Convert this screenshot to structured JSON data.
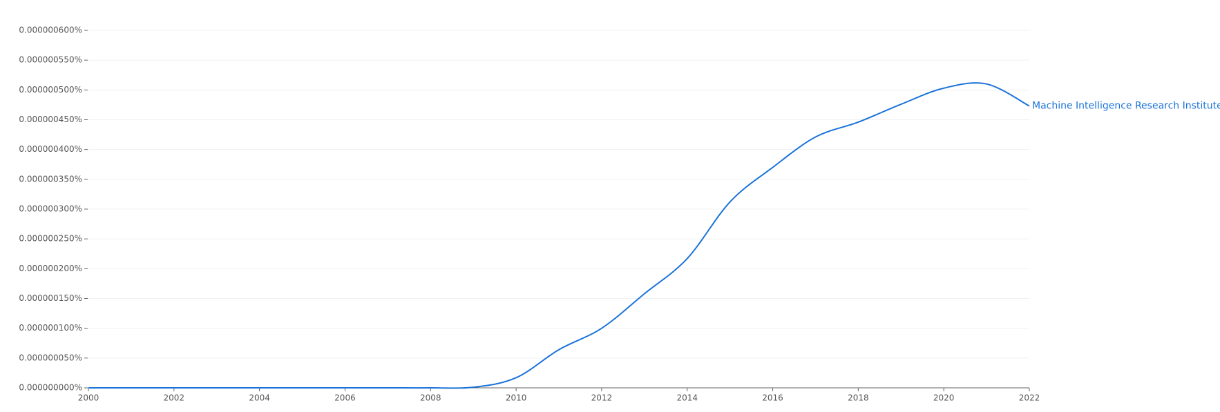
{
  "chart_data": {
    "type": "line",
    "x": [
      2000,
      2001,
      2002,
      2003,
      2004,
      2005,
      2006,
      2007,
      2008,
      2009,
      2010,
      2011,
      2012,
      2013,
      2014,
      2015,
      2016,
      2017,
      2018,
      2019,
      2020,
      2021,
      2022
    ],
    "series": [
      {
        "name": "Machine Intelligence Research Institute",
        "color": "#1a73d9",
        "values": [
          0,
          0,
          0,
          0,
          0,
          0,
          0,
          0,
          0,
          1e-09,
          1.7e-08,
          6.4e-08,
          1e-07,
          1.58e-07,
          2.17e-07,
          3.12e-07,
          3.7e-07,
          4.21e-07,
          4.46e-07,
          4.76e-07,
          5.03e-07,
          5.1e-07,
          4.73e-07
        ]
      }
    ],
    "xlim": [
      2000,
      2022
    ],
    "xticks": [
      2000,
      2002,
      2004,
      2006,
      2008,
      2010,
      2012,
      2014,
      2016,
      2018,
      2020,
      2022
    ],
    "ylim": [
      0,
      6e-07
    ],
    "yticks": [
      {
        "value": 0,
        "label": "0.000000000%"
      },
      {
        "value": 5e-08,
        "label": "0.000000050%"
      },
      {
        "value": 1e-07,
        "label": "0.000000100%"
      },
      {
        "value": 1.5e-07,
        "label": "0.000000150%"
      },
      {
        "value": 2e-07,
        "label": "0.000000200%"
      },
      {
        "value": 2.5e-07,
        "label": "0.000000250%"
      },
      {
        "value": 3e-07,
        "label": "0.000000300%"
      },
      {
        "value": 3.5e-07,
        "label": "0.000000350%"
      },
      {
        "value": 4e-07,
        "label": "0.000000400%"
      },
      {
        "value": 4.5e-07,
        "label": "0.000000450%"
      },
      {
        "value": 5e-07,
        "label": "0.000000500%"
      },
      {
        "value": 5.5e-07,
        "label": "0.000000550%"
      },
      {
        "value": 6e-07,
        "label": "0.000000600%"
      }
    ],
    "grid": true
  }
}
